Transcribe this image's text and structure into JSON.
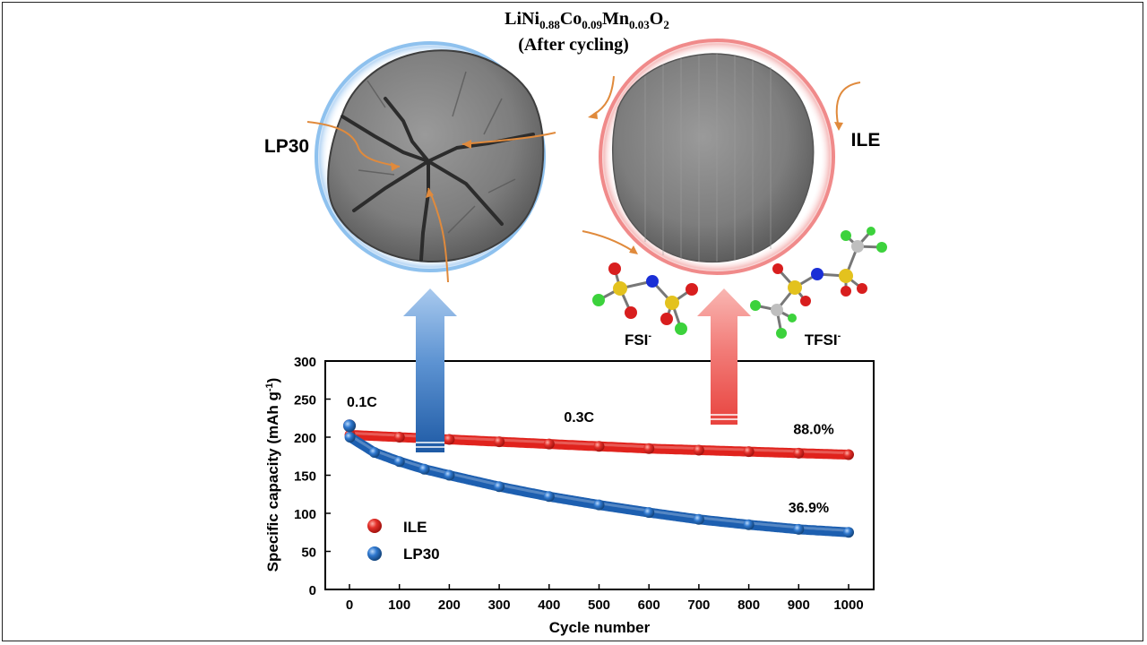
{
  "figure": {
    "title_formula_parts": [
      {
        "t": "LiNi",
        "sub": false
      },
      {
        "t": "0.88",
        "sub": true
      },
      {
        "t": "Co",
        "sub": false
      },
      {
        "t": "0.09",
        "sub": true
      },
      {
        "t": "Mn",
        "sub": false
      },
      {
        "t": "0.03",
        "sub": true
      },
      {
        "t": "O",
        "sub": false
      },
      {
        "t": "2",
        "sub": true
      }
    ],
    "title_line2": "(After cycling)",
    "label_left": "LP30",
    "label_right": "ILE",
    "molecule_fsi": "FSI",
    "molecule_tfsi": "TFSI",
    "anion_charge": "-",
    "colors": {
      "ile": "#e0231d",
      "lp30": "#1d5fb0",
      "arrow_crack": "#e08a3c",
      "ring_left": "#7ab4e8",
      "ring_right": "#ee6f6f",
      "atom_o": "#d81e1e",
      "atom_n": "#1a2fd6",
      "atom_s": "#e3c21e",
      "atom_f": "#3cd23c",
      "atom_c": "#bfbfbf"
    }
  },
  "chart_data": {
    "type": "scatter",
    "xlabel": "Cycle number",
    "ylabel_main": "Specific capacity (mAh g",
    "ylabel_sup": "-1",
    "ylabel_close": ")",
    "xlim": [
      0,
      1000
    ],
    "ylim": [
      0,
      300
    ],
    "xticks": [
      0,
      100,
      200,
      300,
      400,
      500,
      600,
      700,
      800,
      900,
      1000
    ],
    "yticks": [
      0,
      50,
      100,
      150,
      200,
      250,
      300
    ],
    "grid": false,
    "legend_position": "bottom-left",
    "series": [
      {
        "name": "ILE",
        "color_key": "ile",
        "initial": {
          "x": 0,
          "y": 215
        },
        "x": [
          1,
          100,
          200,
          300,
          400,
          500,
          600,
          700,
          800,
          900,
          1000
        ],
        "y": [
          203,
          200,
          197,
          194,
          191,
          188,
          185,
          183,
          181,
          179,
          177
        ]
      },
      {
        "name": "LP30",
        "color_key": "lp30",
        "initial": {
          "x": 0,
          "y": 215
        },
        "x": [
          1,
          50,
          100,
          150,
          200,
          300,
          400,
          500,
          600,
          700,
          800,
          900,
          1000
        ],
        "y": [
          200,
          180,
          168,
          158,
          150,
          135,
          122,
          111,
          101,
          92,
          85,
          79,
          75
        ]
      }
    ],
    "annotations": [
      {
        "text": "0.1C",
        "x": 25,
        "y": 240
      },
      {
        "text": "0.3C",
        "x": 460,
        "y": 220
      },
      {
        "text": "88.0%",
        "x": 930,
        "y": 204
      },
      {
        "text": "36.9%",
        "x": 920,
        "y": 101
      }
    ]
  }
}
